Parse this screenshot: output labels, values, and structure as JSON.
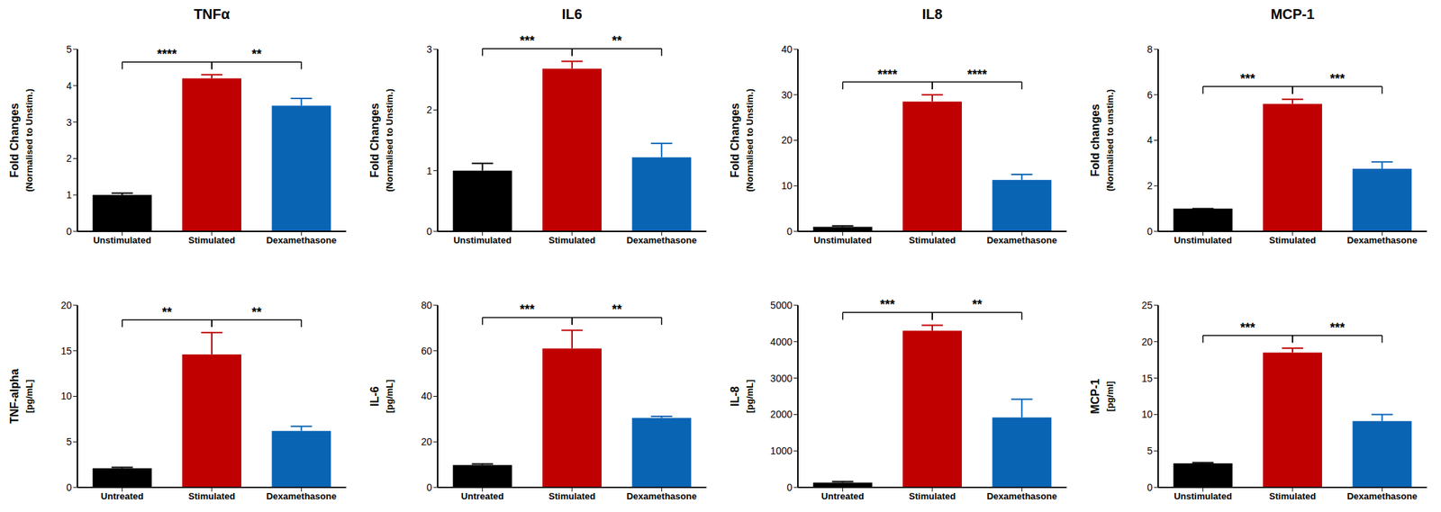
{
  "chart_data": [
    {
      "type": "bar",
      "title": "TNFα",
      "y_label": [
        "Fold Changes",
        "(Normalised to Unstim.)"
      ],
      "categories": [
        "Unstimulated",
        "Stimulated",
        "Dexamethasone"
      ],
      "values": [
        1.0,
        4.2,
        3.45
      ],
      "error": [
        0.05,
        0.1,
        0.2
      ],
      "colors": [
        "#000000",
        "#c00000",
        "#0a64b4"
      ],
      "ylim": [
        0,
        5
      ],
      "yticks": [
        0,
        1,
        2,
        3,
        4,
        5
      ],
      "grid": false,
      "annotations": [
        {
          "from": "Unstimulated",
          "to": "Stimulated",
          "label": "****"
        },
        {
          "from": "Stimulated",
          "to": "Dexamethasone",
          "label": "**"
        }
      ]
    },
    {
      "type": "bar",
      "title": "IL6",
      "y_label": [
        "Fold Changes",
        "(Normalised to Unstim.)"
      ],
      "categories": [
        "Unstimulated",
        "Stimulated",
        "Dexamethasone"
      ],
      "values": [
        1.0,
        2.68,
        1.22
      ],
      "error": [
        0.12,
        0.12,
        0.23
      ],
      "colors": [
        "#000000",
        "#c00000",
        "#0a64b4"
      ],
      "ylim": [
        0,
        3
      ],
      "yticks": [
        0,
        1,
        2,
        3
      ],
      "grid": false,
      "annotations": [
        {
          "from": "Unstimulated",
          "to": "Stimulated",
          "label": "***"
        },
        {
          "from": "Stimulated",
          "to": "Dexamethasone",
          "label": "**"
        }
      ]
    },
    {
      "type": "bar",
      "title": "IL8",
      "y_label": [
        "Fold Changes",
        "(Normalised to Unstim.)"
      ],
      "categories": [
        "Unstimulated",
        "Stimulated",
        "Dexamethasone"
      ],
      "values": [
        1.0,
        28.5,
        11.3
      ],
      "error": [
        0.2,
        1.5,
        1.2
      ],
      "colors": [
        "#000000",
        "#c00000",
        "#0a64b4"
      ],
      "ylim": [
        0,
        40
      ],
      "yticks": [
        0,
        10,
        20,
        30,
        40
      ],
      "grid": false,
      "annotations": [
        {
          "from": "Unstimulated",
          "to": "Stimulated",
          "label": "****"
        },
        {
          "from": "Stimulated",
          "to": "Dexamethasone",
          "label": "****"
        }
      ]
    },
    {
      "type": "bar",
      "title": "MCP-1",
      "y_label": [
        "Fold changes",
        "(Normalised to unstim.)"
      ],
      "categories": [
        "Unstimulated",
        "Stimulated",
        "Dexamethasone"
      ],
      "values": [
        1.0,
        5.6,
        2.75
      ],
      "error": [
        0,
        0.2,
        0.3
      ],
      "colors": [
        "#000000",
        "#c00000",
        "#0a64b4"
      ],
      "ylim": [
        0,
        8
      ],
      "yticks": [
        0,
        2,
        4,
        6,
        8
      ],
      "grid": false,
      "annotations": [
        {
          "from": "Unstimulated",
          "to": "Stimulated",
          "label": "***"
        },
        {
          "from": "Stimulated",
          "to": "Dexamethasone",
          "label": "***"
        }
      ]
    },
    {
      "type": "bar",
      "y_label": [
        "TNF-alpha",
        "[pg/mL]"
      ],
      "categories": [
        "Untreated",
        "Stimulated",
        "Dexamethasone"
      ],
      "values": [
        2.1,
        14.6,
        6.2
      ],
      "error": [
        0.1,
        2.4,
        0.5
      ],
      "colors": [
        "#000000",
        "#c00000",
        "#0a64b4"
      ],
      "ylim": [
        0,
        20
      ],
      "yticks": [
        0,
        5,
        10,
        15,
        20
      ],
      "grid": false,
      "annotations": [
        {
          "from": "Untreated",
          "to": "Stimulated",
          "label": "**"
        },
        {
          "from": "Stimulated",
          "to": "Dexamethasone",
          "label": "**"
        }
      ]
    },
    {
      "type": "bar",
      "y_label": [
        "IL-6",
        "[pg/mL]"
      ],
      "categories": [
        "Untreated",
        "Stimulated",
        "Dexamethasone"
      ],
      "values": [
        9.8,
        61,
        30.5
      ],
      "error": [
        0.5,
        8,
        0.7
      ],
      "colors": [
        "#000000",
        "#c00000",
        "#0a64b4"
      ],
      "ylim": [
        0,
        80
      ],
      "yticks": [
        0,
        20,
        40,
        60,
        80
      ],
      "grid": false,
      "annotations": [
        {
          "from": "Untreated",
          "to": "Stimulated",
          "label": "***"
        },
        {
          "from": "Stimulated",
          "to": "Dexamethasone",
          "label": "**"
        }
      ]
    },
    {
      "type": "bar",
      "y_label": [
        "IL-8",
        "[pg/mL]"
      ],
      "categories": [
        "Untreated",
        "Stimulated",
        "Dexamethasone"
      ],
      "values": [
        130,
        4300,
        1920
      ],
      "error": [
        30,
        150,
        500
      ],
      "colors": [
        "#000000",
        "#c00000",
        "#0a64b4"
      ],
      "ylim": [
        0,
        5000
      ],
      "yticks": [
        0,
        1000,
        2000,
        3000,
        4000,
        5000
      ],
      "grid": false,
      "annotations": [
        {
          "from": "Untreated",
          "to": "Stimulated",
          "label": "***"
        },
        {
          "from": "Stimulated",
          "to": "Dexamethasone",
          "label": "**"
        }
      ]
    },
    {
      "type": "bar",
      "y_label": [
        "MCP-1",
        "[pg/ml]"
      ],
      "categories": [
        "Unstimulated",
        "Stimulated",
        "Dexamethasone"
      ],
      "values": [
        3.3,
        18.5,
        9.1
      ],
      "error": [
        0.1,
        0.6,
        0.9
      ],
      "colors": [
        "#000000",
        "#c00000",
        "#0a64b4"
      ],
      "ylim": [
        0,
        25
      ],
      "yticks": [
        0,
        5,
        10,
        15,
        20,
        25
      ],
      "grid": false,
      "annotations": [
        {
          "from": "Unstimulated",
          "to": "Stimulated",
          "label": "***"
        },
        {
          "from": "Stimulated",
          "to": "Dexamethasone",
          "label": "***"
        }
      ]
    }
  ]
}
